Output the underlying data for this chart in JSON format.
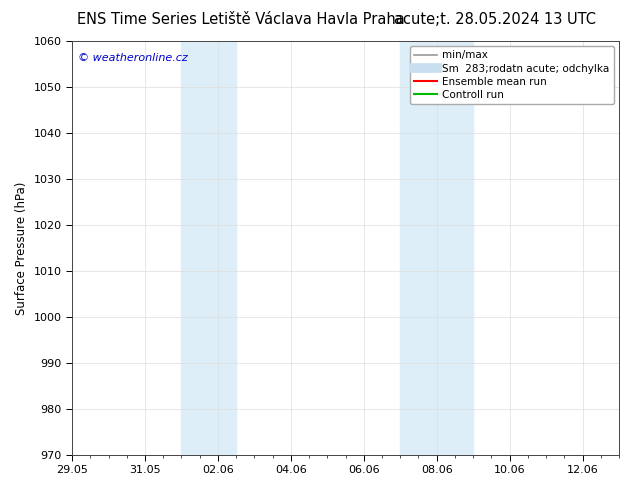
{
  "title_left": "ENS Time Series Letiště Václava Havla Praha",
  "title_right": "acute;t. 28.05.2024 13 UTC",
  "ylabel": "Surface Pressure (hPa)",
  "watermark": "© weatheronline.cz",
  "ylim": [
    970,
    1060
  ],
  "yticks": [
    970,
    980,
    990,
    1000,
    1010,
    1020,
    1030,
    1040,
    1050,
    1060
  ],
  "xlim": [
    0,
    15
  ],
  "x_tick_labels": [
    "29.05",
    "31.05",
    "02.06",
    "04.06",
    "06.06",
    "08.06",
    "10.06",
    "12.06"
  ],
  "x_tick_positions": [
    0,
    2,
    4,
    6,
    8,
    10,
    12,
    14
  ],
  "shade_bands": [
    {
      "x_start": 3.0,
      "x_end": 4.5,
      "color": "#ddeef8"
    },
    {
      "x_start": 9.0,
      "x_end": 11.0,
      "color": "#ddeef8"
    }
  ],
  "legend_entries": [
    {
      "label": "min/max",
      "color": "#999999",
      "lw": 1.2,
      "style": "-"
    },
    {
      "label": "Sm  283;rodatn acute; odchylka",
      "color": "#c8dff0",
      "lw": 7,
      "style": "-"
    },
    {
      "label": "Ensemble mean run",
      "color": "#ff0000",
      "lw": 1.5,
      "style": "-"
    },
    {
      "label": "Controll run",
      "color": "#00bb00",
      "lw": 1.5,
      "style": "-"
    }
  ],
  "bg_color": "#ffffff",
  "plot_bg_color": "#ffffff",
  "grid_color": "#dddddd",
  "title_fontsize": 10.5,
  "axis_label_fontsize": 8.5,
  "tick_fontsize": 8,
  "watermark_color": "#0000cc",
  "watermark_fontsize": 8
}
